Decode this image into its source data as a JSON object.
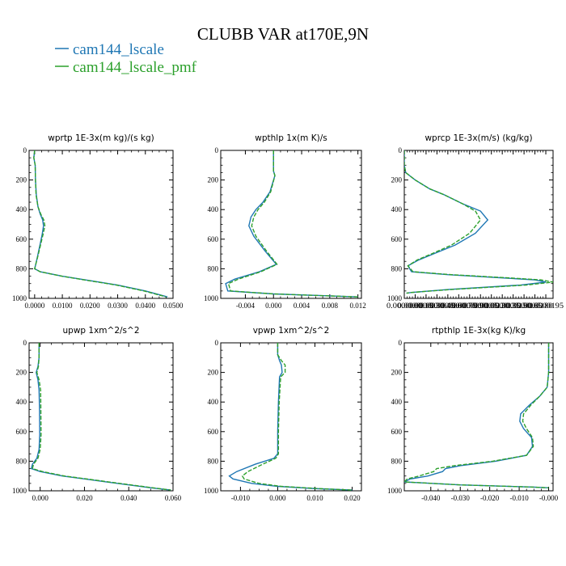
{
  "figure": {
    "title": "CLUBB VAR at170E,9N",
    "legend": [
      {
        "label": "cam144_lscale",
        "color": "#1f77b4",
        "dash": false
      },
      {
        "label": "cam144_lscale_pmf",
        "color": "#2ca02c",
        "dash": true
      }
    ]
  },
  "chart_data": [
    {
      "type": "line",
      "title": "wprtp  1E-3x(m kg)/(s kg)",
      "xlim": [
        -0.002,
        0.05
      ],
      "ylim": [
        1000,
        0
      ],
      "xticks": [
        0.0,
        0.01,
        0.02,
        0.03,
        0.04,
        0.05
      ],
      "xtick_labels": [
        "0.0000",
        "0.0100",
        "0.0200",
        "0.0300",
        "0.0400",
        "0.0500"
      ],
      "yticks": [
        0,
        200,
        400,
        600,
        800,
        1000
      ],
      "ytick_labels": [
        "0",
        "200",
        "400",
        "600",
        "800",
        "1000"
      ],
      "series": [
        {
          "name": "cam144_lscale",
          "x": [
            0.0,
            -0.0003,
            0.0002,
            0.0003,
            0.0006,
            0.0012,
            0.002,
            0.0029,
            0.0032,
            0.0027,
            0.0018,
            0.001,
            0.0004,
            0.0,
            0.002,
            0.01,
            0.02,
            0.03,
            0.04,
            0.048
          ],
          "y": [
            0,
            50,
            100,
            200,
            300,
            380,
            430,
            470,
            510,
            570,
            650,
            720,
            770,
            800,
            820,
            850,
            880,
            910,
            950,
            990
          ]
        },
        {
          "name": "cam144_lscale_pmf",
          "x": [
            0.0,
            -0.0003,
            0.0002,
            0.0003,
            0.0005,
            0.0012,
            0.0022,
            0.0033,
            0.0037,
            0.003,
            0.002,
            0.0011,
            0.0004,
            0.0,
            0.002,
            0.0098,
            0.0195,
            0.0295,
            0.0395,
            0.0475
          ],
          "y": [
            0,
            50,
            100,
            200,
            300,
            380,
            430,
            470,
            510,
            570,
            650,
            720,
            770,
            800,
            820,
            850,
            880,
            910,
            950,
            990
          ]
        }
      ]
    },
    {
      "type": "line",
      "title": "wpthlp  1x(m K)/s",
      "xlim": [
        -0.0075,
        0.0125
      ],
      "ylim": [
        1000,
        0
      ],
      "xticks": [
        -0.004,
        0.0,
        0.004,
        0.008,
        0.012
      ],
      "xtick_labels": [
        "-0.004",
        "0.000",
        "0.004",
        "0.008",
        "0.012"
      ],
      "yticks": [
        0,
        200,
        400,
        600,
        800,
        1000
      ],
      "ytick_labels": [
        "0",
        "200",
        "400",
        "600",
        "800",
        "1000"
      ],
      "series": [
        {
          "name": "cam144_lscale",
          "x": [
            0.0,
            0.0,
            0.0,
            0.0002,
            -0.0005,
            -0.0015,
            -0.0025,
            -0.0032,
            -0.0035,
            -0.0028,
            -0.0012,
            0.0004,
            -0.002,
            -0.0055,
            -0.0068,
            -0.0065,
            0.0,
            0.006,
            0.012
          ],
          "y": [
            0,
            80,
            140,
            170,
            280,
            350,
            400,
            450,
            510,
            580,
            680,
            770,
            820,
            870,
            900,
            950,
            970,
            980,
            990
          ]
        },
        {
          "name": "cam144_lscale_pmf",
          "x": [
            0.0,
            0.0,
            0.0,
            0.0002,
            -0.0004,
            -0.0013,
            -0.0022,
            -0.0028,
            -0.0031,
            -0.0025,
            -0.001,
            0.0005,
            -0.0018,
            -0.005,
            -0.0064,
            -0.0061,
            0.0,
            0.006,
            0.012
          ],
          "y": [
            0,
            80,
            140,
            170,
            280,
            350,
            400,
            450,
            510,
            580,
            680,
            770,
            820,
            870,
            900,
            950,
            970,
            980,
            990
          ]
        }
      ]
    },
    {
      "type": "line",
      "title": "wprcp  1E-3x(m/s) (kg/kg)",
      "xlim": [
        0.0,
        2.05e-05
      ],
      "ylim": [
        1000,
        0
      ],
      "xticks": [
        0.0,
        1.5e-06,
        3e-06,
        4.5e-06,
        6e-06,
        7.5e-06,
        9e-06,
        1.05e-05,
        1.2e-05,
        1.35e-05,
        1.5e-05,
        1.65e-05,
        1.8e-05,
        1.95e-05
      ],
      "xtick_labels": [
        "0.0000000",
        "0.0000015",
        "0.0000030",
        "0.0000045",
        "0.0000060",
        "0.0000075",
        "0.0000090",
        "0.0000105",
        "0.0000120",
        "0.0000135",
        "0.0000150",
        "0.0000165",
        "0.0000180",
        "0.0000195"
      ],
      "yticks": [
        0,
        200,
        400,
        600,
        800,
        1000
      ],
      "ytick_labels": [
        "0",
        "200",
        "400",
        "600",
        "800",
        "1000"
      ],
      "series": [
        {
          "name": "cam144_lscale",
          "x": [
            0.0,
            0.0,
            2e-07,
            1.5e-06,
            3.5e-06,
            5.5e-06,
            8e-06,
            1.05e-05,
            1.15e-05,
            9.8e-06,
            7e-06,
            4.5e-06,
            2e-06,
            5e-07,
            1e-06,
            6e-06,
            1.3e-05,
            1.8e-05,
            1.95e-05,
            1.6e-05,
            6e-06,
            1e-06,
            3e-07
          ],
          "y": [
            0,
            100,
            150,
            200,
            260,
            300,
            360,
            410,
            470,
            560,
            640,
            690,
            740,
            780,
            820,
            840,
            860,
            875,
            890,
            910,
            940,
            960,
            965
          ]
        },
        {
          "name": "cam144_lscale_pmf",
          "x": [
            0.0,
            0.0,
            2e-07,
            1.5e-06,
            3.5e-06,
            5.5e-06,
            8e-06,
            9.8e-06,
            1.05e-05,
            9e-06,
            6.5e-06,
            4.2e-06,
            1.8e-06,
            5e-07,
            1.2e-06,
            6.5e-06,
            1.38e-05,
            1.88e-05,
            2.05e-05,
            1.68e-05,
            6.5e-06,
            1e-06,
            3e-07
          ],
          "y": [
            0,
            100,
            150,
            200,
            260,
            300,
            360,
            410,
            470,
            560,
            640,
            690,
            740,
            780,
            820,
            840,
            860,
            875,
            890,
            910,
            940,
            960,
            965
          ]
        }
      ]
    },
    {
      "type": "line",
      "title": "upwp  1xm^2/s^2",
      "xlim": [
        -0.005,
        0.06
      ],
      "ylim": [
        1000,
        0
      ],
      "xticks": [
        0.0,
        0.02,
        0.04,
        0.06
      ],
      "xtick_labels": [
        "0.000",
        "0.020",
        "0.040",
        "0.060"
      ],
      "yticks": [
        0,
        200,
        400,
        600,
        800,
        1000
      ],
      "ytick_labels": [
        "0",
        "200",
        "400",
        "600",
        "800",
        "1000"
      ],
      "series": [
        {
          "name": "cam144_lscale",
          "x": [
            -0.0005,
            -0.0005,
            -0.001,
            -0.0018,
            -0.001,
            -0.0005,
            -0.0003,
            -0.0002,
            -0.0005,
            -0.0015,
            -0.0035,
            -0.004,
            0.0,
            0.01,
            0.02,
            0.03,
            0.04,
            0.05,
            0.059
          ],
          "y": [
            0,
            100,
            160,
            200,
            250,
            320,
            450,
            620,
            720,
            780,
            820,
            850,
            870,
            900,
            920,
            940,
            960,
            980,
            995
          ]
        },
        {
          "name": "cam144_lscale_pmf",
          "x": [
            -0.0005,
            -0.0005,
            -0.0008,
            -0.0015,
            -0.0005,
            0.0002,
            0.0003,
            0.0004,
            0.0,
            -0.001,
            -0.003,
            -0.0035,
            0.001,
            0.011,
            0.021,
            0.031,
            0.041,
            0.051,
            0.059
          ],
          "y": [
            0,
            100,
            160,
            200,
            250,
            320,
            450,
            620,
            720,
            780,
            820,
            850,
            870,
            900,
            920,
            940,
            960,
            980,
            995
          ]
        }
      ]
    },
    {
      "type": "line",
      "title": "vpwp  1xm^2/s^2",
      "xlim": [
        -0.0153,
        0.0225
      ],
      "ylim": [
        1000,
        0
      ],
      "xticks": [
        -0.01,
        0.0,
        0.01,
        0.02
      ],
      "xtick_labels": [
        "-0.010",
        "0.000",
        "0.010",
        "0.020"
      ],
      "yticks": [
        0,
        200,
        400,
        600,
        800,
        1000
      ],
      "ytick_labels": [
        "0",
        "200",
        "400",
        "600",
        "800",
        "1000"
      ],
      "series": [
        {
          "name": "cam144_lscale",
          "x": [
            0.0,
            0.0,
            0.0005,
            0.001,
            0.0012,
            0.0005,
            0.0002,
            0.0,
            0.0,
            -0.001,
            -0.006,
            -0.011,
            -0.013,
            -0.012,
            -0.007,
            0.0,
            0.01,
            0.02
          ],
          "y": [
            0,
            80,
            120,
            150,
            200,
            230,
            400,
            600,
            750,
            780,
            820,
            870,
            900,
            920,
            950,
            970,
            985,
            995
          ]
        },
        {
          "name": "cam144_lscale_pmf",
          "x": [
            0.0,
            0.0,
            0.001,
            0.002,
            0.002,
            0.0008,
            0.0004,
            0.0002,
            0.0002,
            -0.0005,
            -0.004,
            -0.008,
            -0.0095,
            -0.009,
            -0.005,
            0.001,
            0.011,
            0.02
          ],
          "y": [
            0,
            80,
            120,
            150,
            200,
            230,
            400,
            600,
            750,
            780,
            820,
            870,
            900,
            920,
            950,
            970,
            985,
            995
          ]
        }
      ]
    },
    {
      "type": "line",
      "title": "rtpthlp  1E-3x(kg K)/kg",
      "xlim": [
        -0.049,
        0.0015
      ],
      "ylim": [
        1000,
        0
      ],
      "xticks": [
        -0.04,
        -0.03,
        -0.02,
        -0.01,
        0.0
      ],
      "xtick_labels": [
        "-0.040",
        "-0.030",
        "-0.020",
        "-0.010",
        "-0.000"
      ],
      "yticks": [
        0,
        200,
        400,
        600,
        800,
        1000
      ],
      "ytick_labels": [
        "0",
        "200",
        "400",
        "600",
        "800",
        "1000"
      ],
      "series": [
        {
          "name": "cam144_lscale",
          "x": [
            0.0,
            0.0,
            0.0,
            -0.0005,
            -0.003,
            -0.0065,
            -0.0095,
            -0.0098,
            -0.0085,
            -0.0058,
            -0.0055,
            -0.0075,
            -0.018,
            -0.03,
            -0.035,
            -0.036,
            -0.041,
            -0.047,
            -0.049,
            -0.03,
            -0.005,
            0.0
          ],
          "y": [
            0,
            100,
            200,
            300,
            360,
            420,
            480,
            530,
            580,
            640,
            700,
            760,
            800,
            830,
            850,
            870,
            900,
            920,
            940,
            960,
            975,
            980
          ]
        },
        {
          "name": "cam144_lscale_pmf",
          "x": [
            0.0,
            0.0,
            0.0,
            -0.0005,
            -0.003,
            -0.006,
            -0.0085,
            -0.0088,
            -0.0075,
            -0.0055,
            -0.0052,
            -0.0075,
            -0.019,
            -0.032,
            -0.038,
            -0.039,
            -0.044,
            -0.048,
            -0.049,
            -0.03,
            -0.005,
            0.0
          ],
          "y": [
            0,
            100,
            200,
            300,
            360,
            420,
            480,
            530,
            580,
            640,
            700,
            760,
            800,
            830,
            850,
            870,
            900,
            920,
            940,
            960,
            975,
            980
          ]
        }
      ]
    }
  ]
}
